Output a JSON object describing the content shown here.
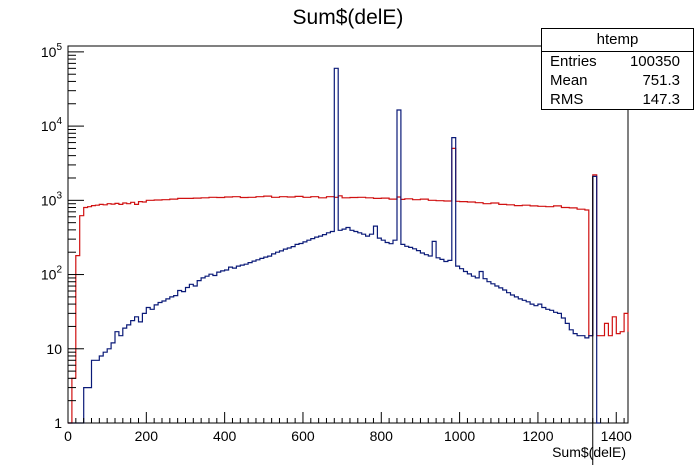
{
  "chart_data": {
    "type": "line",
    "title": "Sum$(delE)",
    "xlabel": "Sum$(delE)",
    "ylabel": "",
    "xlim": [
      0,
      1430
    ],
    "ylim": [
      1,
      120000
    ],
    "yscale": "log",
    "grid": false,
    "x_ticks": [
      0,
      200,
      400,
      600,
      800,
      1000,
      1200,
      1400
    ],
    "y_ticks": [
      {
        "value": 1,
        "base": "1",
        "exp": ""
      },
      {
        "value": 10,
        "base": "10",
        "exp": ""
      },
      {
        "value": 100,
        "base": "10",
        "exp": "2"
      },
      {
        "value": 1000,
        "base": "10",
        "exp": "3"
      },
      {
        "value": 10000,
        "base": "10",
        "exp": "4"
      },
      {
        "value": 100000,
        "base": "10",
        "exp": "5"
      }
    ],
    "series": [
      {
        "color": "#d01010",
        "bins": [
          [
            0,
            0
          ],
          [
            10,
            4
          ],
          [
            20,
            180
          ],
          [
            30,
            620
          ],
          [
            40,
            800
          ],
          [
            50,
            820
          ],
          [
            60,
            850
          ],
          [
            70,
            860
          ],
          [
            80,
            880
          ],
          [
            90,
            870
          ],
          [
            100,
            900
          ],
          [
            110,
            890
          ],
          [
            120,
            910
          ],
          [
            130,
            880
          ],
          [
            140,
            920
          ],
          [
            150,
            900
          ],
          [
            160,
            940
          ],
          [
            170,
            880
          ],
          [
            180,
            960
          ],
          [
            190,
            950
          ],
          [
            200,
            1000
          ],
          [
            220,
            1010
          ],
          [
            240,
            1020
          ],
          [
            260,
            1040
          ],
          [
            280,
            1060
          ],
          [
            300,
            1060
          ],
          [
            320,
            1070
          ],
          [
            340,
            1080
          ],
          [
            360,
            1100
          ],
          [
            380,
            1090
          ],
          [
            400,
            1110
          ],
          [
            420,
            1120
          ],
          [
            440,
            1090
          ],
          [
            460,
            1100
          ],
          [
            480,
            1120
          ],
          [
            500,
            1140
          ],
          [
            520,
            1100
          ],
          [
            540,
            1120
          ],
          [
            560,
            1110
          ],
          [
            580,
            1130
          ],
          [
            600,
            1100
          ],
          [
            620,
            1120
          ],
          [
            640,
            1080
          ],
          [
            660,
            1120
          ],
          [
            680,
            1100
          ],
          [
            690,
            1150
          ],
          [
            700,
            1080
          ],
          [
            720,
            1090
          ],
          [
            740,
            1100
          ],
          [
            760,
            1080
          ],
          [
            780,
            1060
          ],
          [
            800,
            1070
          ],
          [
            820,
            1040
          ],
          [
            840,
            1110
          ],
          [
            850,
            1030
          ],
          [
            860,
            1050
          ],
          [
            880,
            1020
          ],
          [
            900,
            1040
          ],
          [
            920,
            1000
          ],
          [
            940,
            990
          ],
          [
            960,
            980
          ],
          [
            980,
            5000
          ],
          [
            990,
            970
          ],
          [
            1000,
            960
          ],
          [
            1020,
            950
          ],
          [
            1040,
            930
          ],
          [
            1060,
            900
          ],
          [
            1080,
            920
          ],
          [
            1100,
            880
          ],
          [
            1120,
            870
          ],
          [
            1140,
            850
          ],
          [
            1160,
            860
          ],
          [
            1180,
            840
          ],
          [
            1200,
            830
          ],
          [
            1220,
            820
          ],
          [
            1240,
            840
          ],
          [
            1260,
            800
          ],
          [
            1280,
            790
          ],
          [
            1300,
            760
          ],
          [
            1320,
            740
          ],
          [
            1330,
            15
          ],
          [
            1340,
            2200
          ],
          [
            1350,
            15
          ],
          [
            1370,
            22
          ],
          [
            1380,
            15
          ],
          [
            1390,
            27
          ],
          [
            1400,
            16
          ],
          [
            1410,
            17
          ],
          [
            1420,
            30
          ],
          [
            1430,
            17
          ]
        ]
      },
      {
        "color": "#0a1a78",
        "bins": [
          [
            0,
            0
          ],
          [
            20,
            1
          ],
          [
            40,
            3
          ],
          [
            60,
            7
          ],
          [
            80,
            8
          ],
          [
            90,
            9
          ],
          [
            100,
            10
          ],
          [
            110,
            12
          ],
          [
            120,
            17
          ],
          [
            130,
            15
          ],
          [
            140,
            19
          ],
          [
            150,
            21
          ],
          [
            160,
            24
          ],
          [
            170,
            27
          ],
          [
            180,
            23
          ],
          [
            190,
            30
          ],
          [
            200,
            36
          ],
          [
            210,
            34
          ],
          [
            220,
            39
          ],
          [
            230,
            42
          ],
          [
            240,
            44
          ],
          [
            250,
            47
          ],
          [
            260,
            50
          ],
          [
            270,
            52
          ],
          [
            280,
            61
          ],
          [
            290,
            59
          ],
          [
            300,
            67
          ],
          [
            310,
            74
          ],
          [
            320,
            70
          ],
          [
            330,
            83
          ],
          [
            340,
            90
          ],
          [
            350,
            95
          ],
          [
            360,
            101
          ],
          [
            370,
            97
          ],
          [
            380,
            108
          ],
          [
            390,
            112
          ],
          [
            400,
            115
          ],
          [
            410,
            126
          ],
          [
            420,
            122
          ],
          [
            430,
            130
          ],
          [
            440,
            134
          ],
          [
            450,
            138
          ],
          [
            460,
            145
          ],
          [
            470,
            152
          ],
          [
            480,
            158
          ],
          [
            490,
            165
          ],
          [
            500,
            172
          ],
          [
            510,
            177
          ],
          [
            520,
            190
          ],
          [
            530,
            200
          ],
          [
            540,
            208
          ],
          [
            550,
            220
          ],
          [
            560,
            228
          ],
          [
            570,
            238
          ],
          [
            580,
            255
          ],
          [
            590,
            262
          ],
          [
            600,
            275
          ],
          [
            610,
            290
          ],
          [
            620,
            305
          ],
          [
            630,
            320
          ],
          [
            640,
            330
          ],
          [
            650,
            345
          ],
          [
            660,
            365
          ],
          [
            670,
            380
          ],
          [
            680,
            60000
          ],
          [
            690,
            395
          ],
          [
            700,
            410
          ],
          [
            710,
            430
          ],
          [
            720,
            395
          ],
          [
            730,
            380
          ],
          [
            740,
            365
          ],
          [
            750,
            350
          ],
          [
            760,
            330
          ],
          [
            770,
            350
          ],
          [
            780,
            450
          ],
          [
            790,
            310
          ],
          [
            800,
            290
          ],
          [
            810,
            270
          ],
          [
            820,
            260
          ],
          [
            830,
            290
          ],
          [
            840,
            16500
          ],
          [
            850,
            255
          ],
          [
            860,
            240
          ],
          [
            870,
            232
          ],
          [
            880,
            222
          ],
          [
            890,
            210
          ],
          [
            900,
            195
          ],
          [
            910,
            185
          ],
          [
            920,
            178
          ],
          [
            930,
            280
          ],
          [
            940,
            168
          ],
          [
            950,
            160
          ],
          [
            960,
            150
          ],
          [
            970,
            155
          ],
          [
            980,
            7000
          ],
          [
            990,
            130
          ],
          [
            1000,
            120
          ],
          [
            1010,
            110
          ],
          [
            1020,
            102
          ],
          [
            1030,
            95
          ],
          [
            1040,
            90
          ],
          [
            1050,
            110
          ],
          [
            1060,
            88
          ],
          [
            1070,
            80
          ],
          [
            1080,
            75
          ],
          [
            1090,
            70
          ],
          [
            1100,
            66
          ],
          [
            1110,
            62
          ],
          [
            1120,
            57
          ],
          [
            1130,
            53
          ],
          [
            1140,
            50
          ],
          [
            1150,
            47
          ],
          [
            1160,
            45
          ],
          [
            1170,
            43
          ],
          [
            1180,
            40
          ],
          [
            1190,
            38
          ],
          [
            1200,
            40
          ],
          [
            1210,
            36
          ],
          [
            1220,
            34
          ],
          [
            1230,
            33
          ],
          [
            1240,
            31
          ],
          [
            1250,
            30
          ],
          [
            1260,
            26
          ],
          [
            1270,
            22
          ],
          [
            1280,
            18
          ],
          [
            1290,
            16
          ],
          [
            1300,
            15
          ],
          [
            1310,
            15
          ],
          [
            1320,
            14
          ],
          [
            1330,
            15
          ],
          [
            1340,
            2100
          ],
          [
            1350,
            0
          ]
        ]
      }
    ]
  },
  "stats": {
    "name": "htemp",
    "rows": [
      {
        "key": "Entries",
        "value": "100350"
      },
      {
        "key": "Mean",
        "value": "751.3"
      },
      {
        "key": "RMS",
        "value": "147.3"
      }
    ]
  },
  "marker_line_x": 1340
}
